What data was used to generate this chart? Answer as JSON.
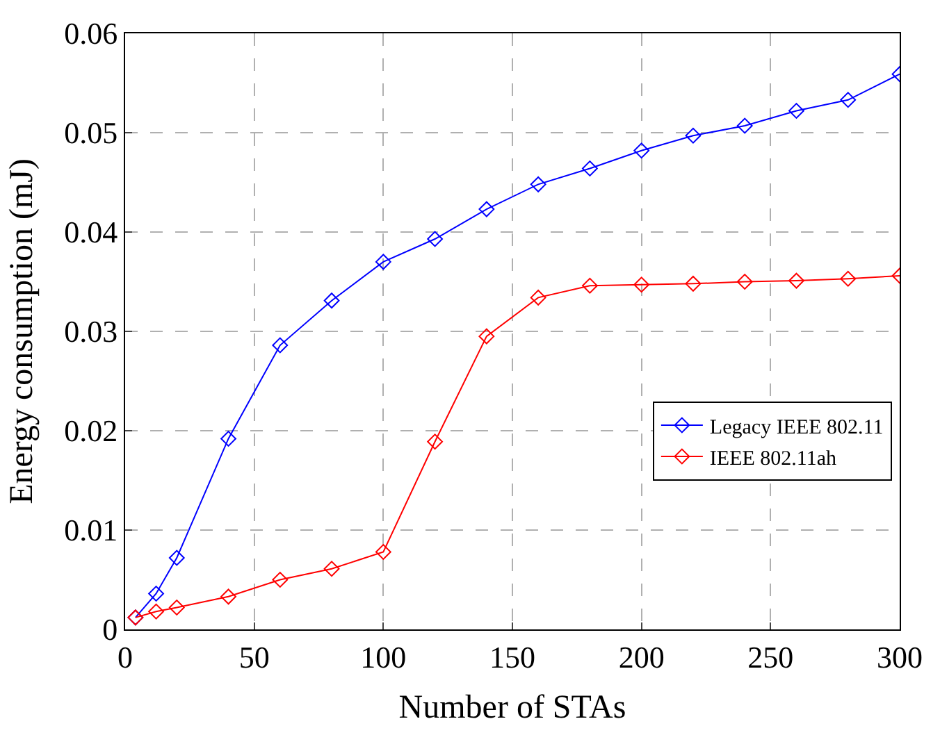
{
  "chart_data": {
    "type": "line",
    "xlabel": "Number of STAs",
    "ylabel": "Energy consumption (mJ)",
    "x": [
      4,
      12,
      20,
      40,
      60,
      80,
      100,
      120,
      140,
      160,
      180,
      200,
      220,
      240,
      260,
      280,
      300
    ],
    "series": [
      {
        "name": "Legacy IEEE 802.11",
        "color": "#0000ff",
        "values": [
          0.0012,
          0.0036,
          0.0072,
          0.0192,
          0.0286,
          0.0331,
          0.037,
          0.0393,
          0.0423,
          0.0448,
          0.0464,
          0.0482,
          0.0497,
          0.0507,
          0.0522,
          0.0533,
          0.0559
        ]
      },
      {
        "name": "IEEE 802.11ah",
        "color": "#ff0000",
        "values": [
          0.0012,
          0.0018,
          0.0022,
          0.0033,
          0.005,
          0.0061,
          0.0078,
          0.0189,
          0.0295,
          0.0334,
          0.0346,
          0.0347,
          0.0348,
          0.035,
          0.0351,
          0.0353,
          0.0356
        ]
      }
    ],
    "xlim": [
      0,
      300
    ],
    "xticks": [
      0,
      50,
      100,
      150,
      200,
      250,
      300
    ],
    "ylim": [
      0,
      0.06
    ],
    "yticks": [
      0,
      0.01,
      0.02,
      0.03,
      0.04,
      0.05,
      0.06
    ],
    "grid": true,
    "legend": "bottom right",
    "marker": "diamond",
    "line_style": "solid"
  }
}
